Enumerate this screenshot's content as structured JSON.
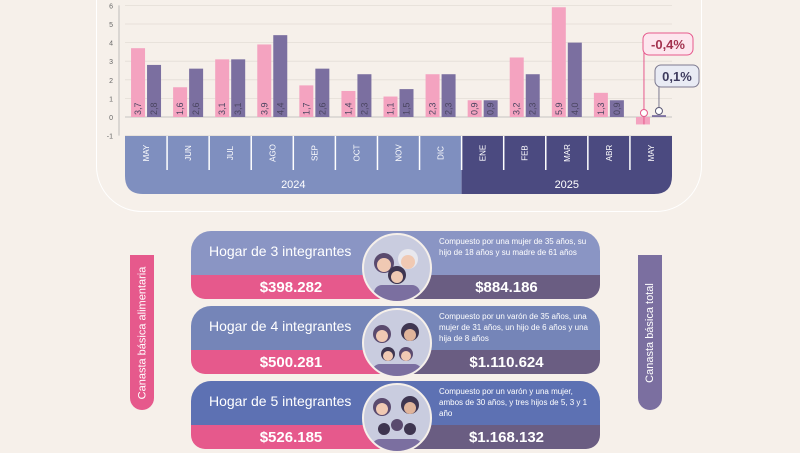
{
  "colors": {
    "alimentaria": "#f4a3c0",
    "total": "#7b6fa0",
    "band_2024": "#7f8fbf",
    "band_2025": "#4b4a80",
    "pink_accent": "#e6598c",
    "card_3": "#8a95c4",
    "card_4": "#7585b8",
    "card_5": "#5d71b3"
  },
  "chart_data": {
    "type": "bar",
    "y_ticks": [
      "-1",
      "0",
      "1",
      "2",
      "3",
      "4",
      "5",
      "6"
    ],
    "ylim": [
      -1,
      6
    ],
    "categories": [
      "MAY",
      "JUN",
      "JUL",
      "AGO",
      "SEP",
      "OCT",
      "NOV",
      "DIC",
      "ENE",
      "FEB",
      "MAR",
      "ABR",
      "MAY"
    ],
    "series": [
      {
        "values": [
          3.7,
          1.6,
          3.1,
          3.9,
          1.7,
          1.4,
          1.1,
          2.3,
          0.9,
          3.2,
          5.9,
          1.3,
          -0.4
        ],
        "labels": [
          "3,7",
          "1,6",
          "3,1",
          "3,9",
          "1,7",
          "1,4",
          "1,1",
          "2,3",
          "0,9",
          "3,2",
          "5,9",
          "1,3",
          ""
        ]
      },
      {
        "values": [
          2.8,
          2.6,
          3.1,
          4.4,
          2.6,
          2.3,
          1.5,
          2.3,
          0.9,
          2.3,
          4.0,
          0.9,
          0.1
        ],
        "labels": [
          "2,8",
          "2,6",
          "3,1",
          "4,4",
          "2,6",
          "2,3",
          "1,5",
          "2,3",
          "0,9",
          "2,3",
          "4,0",
          "0,9",
          ""
        ]
      }
    ],
    "years": [
      "2024",
      "2025"
    ],
    "callouts": [
      "-0,4%",
      "0,1%"
    ]
  },
  "side_labels": {
    "left": "Canasta básica alimentaria",
    "right": "Canasta básica total"
  },
  "households": [
    {
      "title": "Hogar de 3 integrantes",
      "desc": "Compuesto por una mujer de 35 años, su hijo de 18 años y su madre de 61 años",
      "alimentaria": "$398.282",
      "total": "$884.186"
    },
    {
      "title": "Hogar de 4 integrantes",
      "desc": "Compuesto por un varón de 35 años, una mujer de 31 años, un hijo de 6 años y una hija de 8 años",
      "alimentaria": "$500.281",
      "total": "$1.110.624"
    },
    {
      "title": "Hogar de 5 integrantes",
      "desc": "Compuesto por un varón y una mujer, ambos de 30 años, y tres hijos de 5, 3 y 1 año",
      "alimentaria": "$526.185",
      "total": "$1.168.132"
    }
  ]
}
